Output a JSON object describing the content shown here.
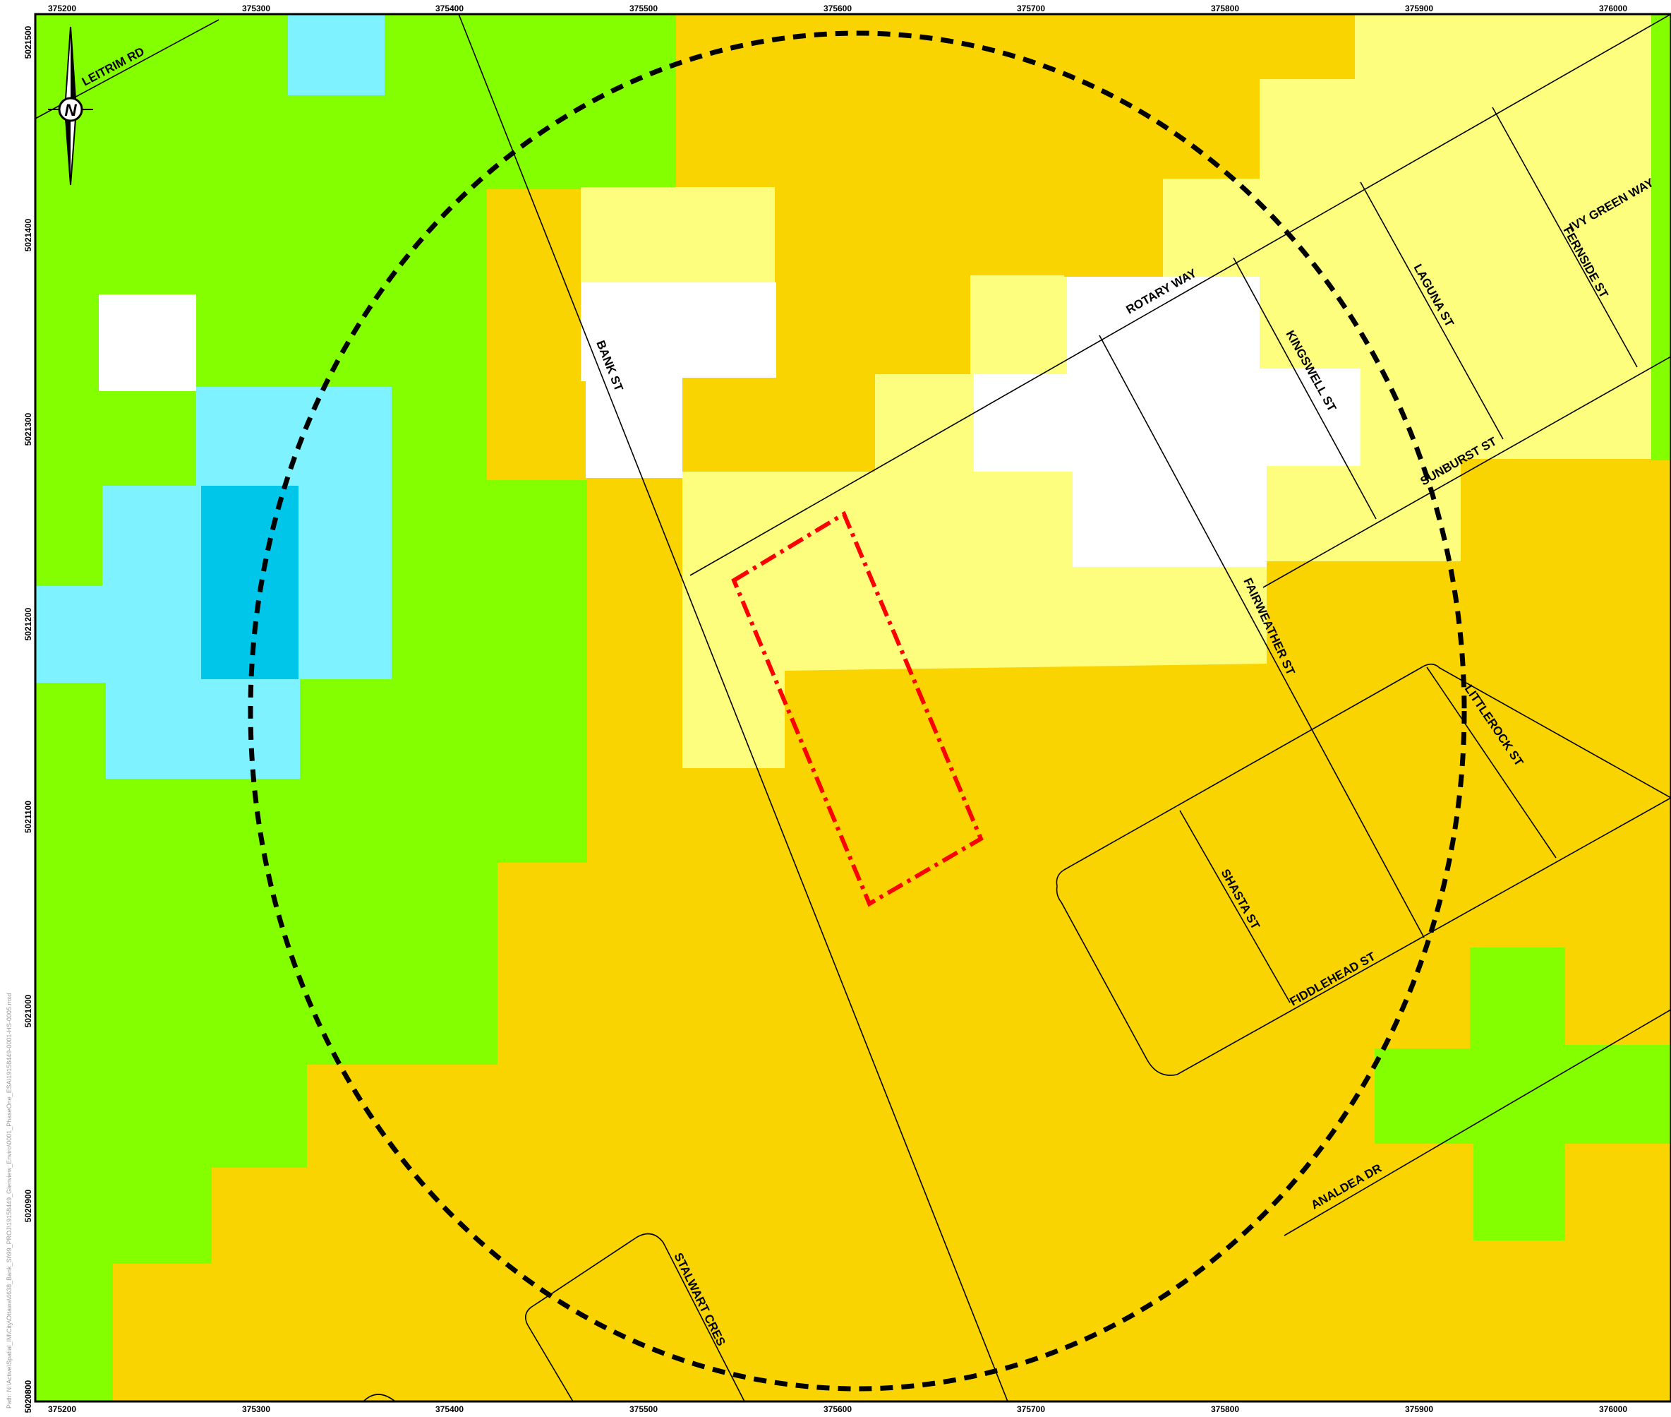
{
  "map": {
    "colors": {
      "green": "#84ff00",
      "orange": "#f9d400",
      "light_yellow": "#fefe7e",
      "white": "#ffffff",
      "light_blue": "#7ff2ff",
      "cyan": "#00c6ea",
      "study_radius": "#000000",
      "site_boundary": "#ff0000"
    },
    "north_arrow": {
      "letter": "N",
      "icon": "north-arrow-icon"
    },
    "easting_ticks": [
      "375200",
      "375300",
      "375400",
      "375500",
      "375600",
      "375700",
      "375800",
      "375900",
      "376000"
    ],
    "northing_ticks": [
      "5021500",
      "5021400",
      "5021300",
      "5021200",
      "5021100",
      "5021000",
      "5020900",
      "5020800"
    ],
    "streets": {
      "leitrim": "LEITRIM RD",
      "rotary": "ROTARY   WAY",
      "bank": "BANK ST",
      "kingswell": "KINGSWELL   ST",
      "laguna": "LAGUNA   ST",
      "ivy_green": "IVY GREEN WAY",
      "fernside": "FERNSIDE ST",
      "sunburst": "SUNBURST ST",
      "fairweather": "FAIRWEATHER ST",
      "littlerock": "LITTLEROCK ST",
      "shasta": "SHASTA   ST",
      "fiddlehead": "FIDDLEHEAD ST",
      "analdea": "ANALDEA   DR",
      "stalwart": "STALWART CRES"
    },
    "path_note": "Path: N:\\Active\\Spatial_IM\\City\\Ottawa\\4638_Bank_St\\99_PROJ\\19158449_Glenview_Enviro\\0001_PhaseOne_ESA\\19158449-0001-HS-0005.mxd"
  }
}
